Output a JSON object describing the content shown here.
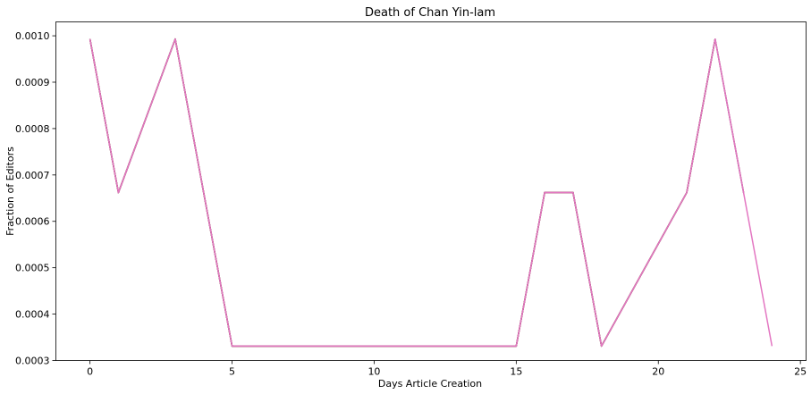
{
  "chart_data": {
    "type": "line",
    "title": "Death of Chan Yin-lam",
    "xlabel": "Days Article Creation",
    "ylabel": "Fraction of Editors",
    "xlim": [
      -1.2,
      25.2
    ],
    "ylim": [
      0.0003,
      0.00103
    ],
    "xticks": [
      0,
      5,
      10,
      15,
      20,
      25
    ],
    "xtick_labels": [
      "0",
      "5",
      "10",
      "15",
      "20",
      "25"
    ],
    "yticks": [
      0.0003,
      0.0004,
      0.0005,
      0.0006,
      0.0007,
      0.0008,
      0.0009,
      0.001
    ],
    "ytick_labels": [
      "0.0003",
      "0.0004",
      "0.0005",
      "0.0006",
      "0.0007",
      "0.0008",
      "0.0009",
      "0.0010"
    ],
    "grid": false,
    "series": [
      {
        "color": "#1f77b4",
        "x": [
          0,
          1,
          3,
          5,
          15,
          16,
          17,
          18,
          21,
          22
        ],
        "y": [
          0.000993,
          0.000662,
          0.000993,
          0.000331,
          0.000331,
          0.000662,
          0.000662,
          0.000331,
          0.000662,
          0.000993
        ]
      },
      {
        "color": "#ff7f0e",
        "x": [
          0,
          1,
          3,
          5,
          15,
          16,
          17,
          18,
          21,
          22
        ],
        "y": [
          0.000993,
          0.000662,
          0.000993,
          0.000331,
          0.000331,
          0.000662,
          0.000662,
          0.000331,
          0.000662,
          0.000993
        ]
      },
      {
        "color": "#2ca02c",
        "x": [
          0,
          1,
          3,
          5,
          15,
          16,
          17,
          18,
          21,
          22
        ],
        "y": [
          0.000993,
          0.000662,
          0.000993,
          0.000331,
          0.000331,
          0.000662,
          0.000662,
          0.000331,
          0.000662,
          0.000993
        ]
      },
      {
        "color": "#d62728",
        "x": [
          0,
          1,
          3,
          5,
          15,
          16,
          17,
          18,
          21,
          22
        ],
        "y": [
          0.000993,
          0.000662,
          0.000993,
          0.000331,
          0.000331,
          0.000662,
          0.000662,
          0.000331,
          0.000662,
          0.000993
        ]
      },
      {
        "color": "#9467bd",
        "x": [
          0,
          1,
          3,
          5,
          15,
          16,
          17,
          18,
          21,
          22,
          23
        ],
        "y": [
          0.000993,
          0.000662,
          0.000993,
          0.000331,
          0.000331,
          0.000662,
          0.000662,
          0.000331,
          0.000662,
          0.000993,
          0.000662
        ]
      },
      {
        "color": "#8c564b",
        "x": [
          0,
          1,
          3,
          5,
          15,
          16,
          17,
          18,
          21,
          22,
          23
        ],
        "y": [
          0.000993,
          0.000662,
          0.000993,
          0.000331,
          0.000331,
          0.000662,
          0.000662,
          0.000331,
          0.000662,
          0.000993,
          0.000662
        ]
      },
      {
        "color": "#e377c2",
        "x": [
          0,
          1,
          3,
          5,
          15,
          16,
          17,
          18,
          21,
          22,
          23,
          24
        ],
        "y": [
          0.000993,
          0.000662,
          0.000993,
          0.000331,
          0.000331,
          0.000662,
          0.000662,
          0.000331,
          0.000662,
          0.000993,
          0.000662,
          0.000331
        ]
      }
    ]
  }
}
